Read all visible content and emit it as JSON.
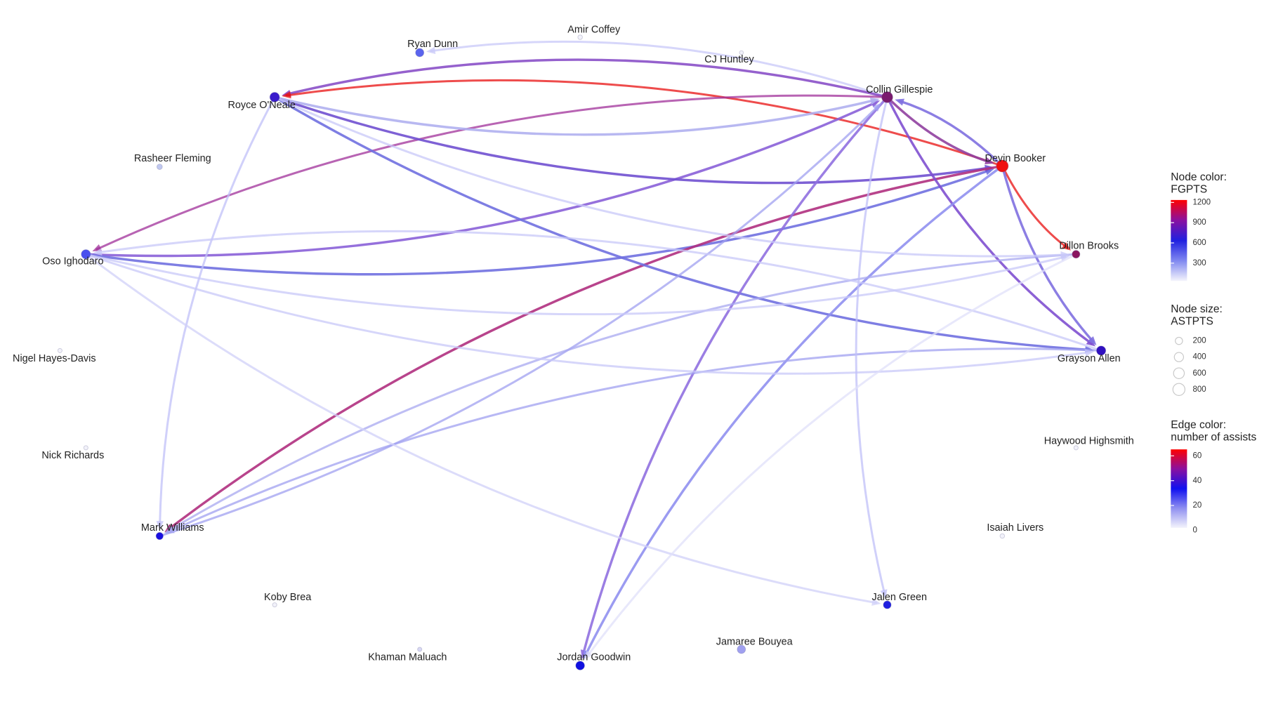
{
  "nodes": [
    {
      "label": "Amir Coffey",
      "color": "#f2f2fa",
      "astpts": 40
    },
    {
      "label": "CJ Huntley",
      "color": "#f2f2fa",
      "astpts": 20
    },
    {
      "label": "Ryan Dunn",
      "color": "#5a64ee",
      "astpts": 300
    },
    {
      "label": "Collin Gillespie",
      "color": "#7a1b6e",
      "astpts": 650
    },
    {
      "label": "Royce O'Neale",
      "color": "#3a1ccc",
      "astpts": 450
    },
    {
      "label": "Devin Booker",
      "color": "#f01010",
      "astpts": 800
    },
    {
      "label": "Rasheer Fleming",
      "color": "#c0c8f0",
      "astpts": 80
    },
    {
      "label": "Dillon Brooks",
      "color": "#8a1560",
      "astpts": 250
    },
    {
      "label": "Oso Ighodaro",
      "color": "#4a50ee",
      "astpts": 400
    },
    {
      "label": "Grayson Allen",
      "color": "#3010c0",
      "astpts": 400
    },
    {
      "label": "Nigel Hayes-Davis",
      "color": "#f2f2fa",
      "astpts": 30
    },
    {
      "label": "Haywood Highsmith",
      "color": "#f2f2fa",
      "astpts": 30
    },
    {
      "label": "Nick Richards",
      "color": "#f2f2fa",
      "astpts": 30
    },
    {
      "label": "Isaiah Livers",
      "color": "#f2f2fa",
      "astpts": 40
    },
    {
      "label": "Mark Williams",
      "color": "#1a10e0",
      "astpts": 200
    },
    {
      "label": "Jalen Green",
      "color": "#2020e0",
      "astpts": 250
    },
    {
      "label": "Koby Brea",
      "color": "#f2f2fa",
      "astpts": 30
    },
    {
      "label": "Jamaree Bouyea",
      "color": "#a0a0f0",
      "astpts": 300
    },
    {
      "label": "Khaman Maluach",
      "color": "#d8d8f4",
      "astpts": 30
    },
    {
      "label": "Jordan Goodwin",
      "color": "#1010e0",
      "astpts": 350
    }
  ],
  "edges": [
    {
      "from": 3,
      "to": 2,
      "color": "#c8c8f8"
    },
    {
      "from": 3,
      "to": 4,
      "color": "#8a50c8"
    },
    {
      "from": 5,
      "to": 4,
      "color": "#e81010"
    },
    {
      "from": 3,
      "to": 8,
      "color": "#a0309a"
    },
    {
      "from": 8,
      "to": 3,
      "color": "#8a60d8"
    },
    {
      "from": 8,
      "to": 5,
      "color": "#7070e0"
    },
    {
      "from": 4,
      "to": 5,
      "color": "#7050d0"
    },
    {
      "from": 5,
      "to": 14,
      "color": "#b03080"
    },
    {
      "from": 3,
      "to": 5,
      "color": "#9040a0"
    },
    {
      "from": 5,
      "to": 3,
      "color": "#8070e0"
    },
    {
      "from": 5,
      "to": 7,
      "color": "#e81010"
    },
    {
      "from": 3,
      "to": 9,
      "color": "#8050d0"
    },
    {
      "from": 5,
      "to": 9,
      "color": "#8070e0"
    },
    {
      "from": 4,
      "to": 9,
      "color": "#7070e0"
    },
    {
      "from": 3,
      "to": 19,
      "color": "#9070e0"
    },
    {
      "from": 5,
      "to": 19,
      "color": "#9090f0"
    },
    {
      "from": 14,
      "to": 3,
      "color": "#a0a0f0"
    },
    {
      "from": 9,
      "to": 14,
      "color": "#a0a0f0"
    },
    {
      "from": 7,
      "to": 14,
      "color": "#a8a8f0"
    },
    {
      "from": 4,
      "to": 14,
      "color": "#c0c0f8"
    },
    {
      "from": 8,
      "to": 7,
      "color": "#c8c8f8"
    },
    {
      "from": 8,
      "to": 9,
      "color": "#c8c8f8"
    },
    {
      "from": 8,
      "to": 15,
      "color": "#d0d0f8"
    },
    {
      "from": 3,
      "to": 15,
      "color": "#c0c0f8"
    },
    {
      "from": 4,
      "to": 3,
      "color": "#b0b0f0"
    },
    {
      "from": 9,
      "to": 8,
      "color": "#c8c8f8"
    },
    {
      "from": 7,
      "to": 19,
      "color": "#e0e0fa"
    },
    {
      "from": 4,
      "to": 7,
      "color": "#c8c8f8"
    }
  ],
  "legend": {
    "node_color": {
      "title": [
        "Node color:",
        "FGPTS"
      ],
      "ticks": [
        1200,
        900,
        600,
        300
      ],
      "colors": [
        "#ff0000",
        "#8a10a0",
        "#2020e0",
        "#8088f0",
        "#f4f4fc"
      ]
    },
    "node_size": {
      "title": [
        "Node size:",
        "ASTPTS"
      ],
      "ticks": [
        200,
        400,
        600,
        800
      ]
    },
    "edge_color": {
      "title": [
        "Edge color:",
        "number of assists"
      ],
      "ticks": [
        60,
        40,
        20,
        0
      ],
      "colors": [
        "#ff0000",
        "#8a10a0",
        "#1010f0",
        "#9090f0",
        "#f4f4fc"
      ]
    }
  }
}
